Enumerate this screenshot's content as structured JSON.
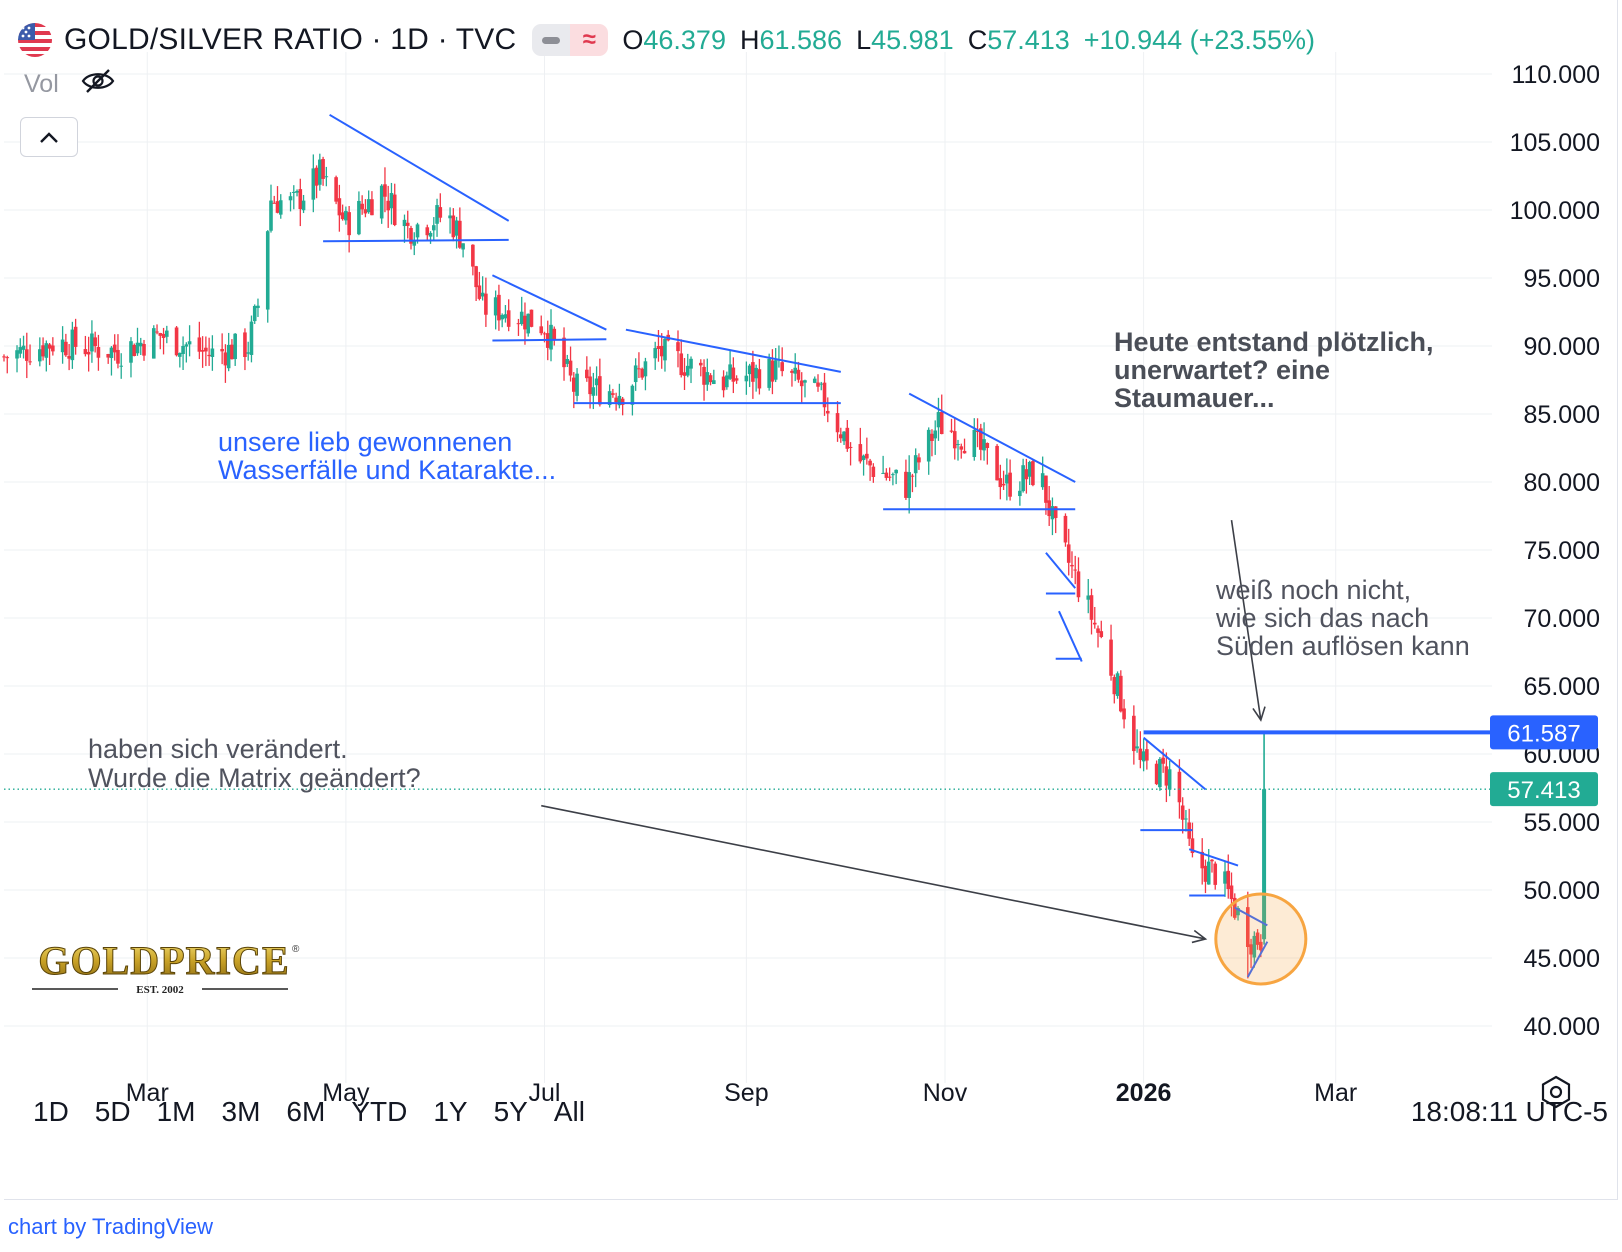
{
  "header": {
    "title": "GOLD/SILVER RATIO · 1D · TVC",
    "ohlc": [
      {
        "key": "O",
        "value": "46.379"
      },
      {
        "key": "H",
        "value": "61.586"
      },
      {
        "key": "L",
        "value": "45.981"
      },
      {
        "key": "C",
        "value": "57.413"
      }
    ],
    "change": "+10.944 (+23.55%)",
    "pill_icon": "≈"
  },
  "volume": {
    "label": "Vol",
    "icon": "eye-off-icon"
  },
  "collapse": {
    "icon": "chevron-up-icon",
    "glyph": "⌃"
  },
  "range_buttons": [
    "1D",
    "5D",
    "1M",
    "3M",
    "6M",
    "YTD",
    "1Y",
    "5Y",
    "All"
  ],
  "clock": "18:08:11 UTC-5",
  "credit": "chart by TradingView",
  "logo": {
    "text": "GOLDPRICE",
    "sub": "EST. 2002",
    "registered": "®"
  },
  "annotations": {
    "waterfalls": "unsere lieb gewonnenen\nWasserfälle und Katarakte...",
    "dam": "Heute entstand plötzlich,\nunerwartet?  eine\nStaumauer...",
    "south": "weiß noch nicht,\nwie sich das nach\nSüden auflösen kann",
    "matrix": "haben sich verändert.\nWurde die Matrix geändert?"
  },
  "colors": {
    "up": "#22ab94",
    "down": "#f23645",
    "drawing": "#2962ff",
    "circle": "#f7a541",
    "last_price": "#22ab94"
  },
  "chart_data": {
    "type": "candlestick",
    "title": "GOLD/SILVER RATIO · 1D · TVC",
    "ylim": [
      38,
      112
    ],
    "y_ticks": [
      40,
      45,
      50,
      55,
      60,
      65,
      70,
      75,
      80,
      85,
      90,
      95,
      100,
      105,
      110
    ],
    "y_tick_labels": [
      "40.000",
      "45.000",
      "50.000",
      "55.000",
      "60.000",
      "65.000",
      "70.000",
      "75.000",
      "80.000",
      "85.000",
      "90.000",
      "95.000",
      "100.000",
      "105.000",
      "110.000"
    ],
    "x_ticks": [
      {
        "label": "Mar",
        "date": "2025-03-01",
        "bold": false
      },
      {
        "label": "May",
        "date": "2025-05-01",
        "bold": false
      },
      {
        "label": "Jul",
        "date": "2025-07-01",
        "bold": false
      },
      {
        "label": "Sep",
        "date": "2025-09-01",
        "bold": false
      },
      {
        "label": "Nov",
        "date": "2025-11-01",
        "bold": false
      },
      {
        "label": "2026",
        "date": "2026-01-01",
        "bold": true
      },
      {
        "label": "Mar",
        "date": "2026-03-01",
        "bold": false
      }
    ],
    "x_range": [
      "2025-01-16",
      "2026-04-18"
    ],
    "grid": true,
    "price_labels": [
      {
        "value": 61.587,
        "label": "61.587",
        "color": "#2962ff"
      },
      {
        "value": 57.413,
        "label": "57.413",
        "color": "#22ab94"
      }
    ],
    "close_path": [
      [
        "2025-01-16",
        89.2
      ],
      [
        "2025-02-01",
        90.3
      ],
      [
        "2025-02-20",
        89.6
      ],
      [
        "2025-03-05",
        90.8
      ],
      [
        "2025-03-20",
        89.4
      ],
      [
        "2025-04-01",
        90.0
      ],
      [
        "2025-04-04",
        93.0
      ],
      [
        "2025-04-08",
        100.8
      ],
      [
        "2025-04-15",
        100.4
      ],
      [
        "2025-04-23",
        102.6
      ],
      [
        "2025-05-01",
        99.0
      ],
      [
        "2025-05-12",
        101.5
      ],
      [
        "2025-05-20",
        98.6
      ],
      [
        "2025-06-01",
        99.7
      ],
      [
        "2025-06-06",
        97.8
      ],
      [
        "2025-06-12",
        92.8
      ],
      [
        "2025-06-20",
        92.6
      ],
      [
        "2025-07-01",
        91.5
      ],
      [
        "2025-07-10",
        86.9
      ],
      [
        "2025-07-25",
        86.7
      ],
      [
        "2025-08-05",
        89.6
      ],
      [
        "2025-08-25",
        87.4
      ],
      [
        "2025-09-10",
        88.3
      ],
      [
        "2025-09-25",
        86.0
      ],
      [
        "2025-10-05",
        81.7
      ],
      [
        "2025-10-20",
        79.7
      ],
      [
        "2025-10-30",
        84.3
      ],
      [
        "2025-11-10",
        82.9
      ],
      [
        "2025-11-20",
        79.8
      ],
      [
        "2025-11-30",
        80.8
      ],
      [
        "2025-12-05",
        76.2
      ],
      [
        "2025-12-12",
        72.4
      ],
      [
        "2025-12-20",
        67.8
      ],
      [
        "2025-12-28",
        61.8
      ],
      [
        "2025-12-31",
        59.2
      ],
      [
        "2026-01-10",
        58.4
      ],
      [
        "2026-01-16",
        52.0
      ],
      [
        "2026-01-24",
        51.2
      ],
      [
        "2026-01-30",
        48.2
      ],
      [
        "2026-02-03",
        46.4
      ],
      [
        "2026-02-06",
        46.4
      ],
      [
        "2026-02-07",
        57.4
      ]
    ],
    "last_candle": {
      "date": "2026-02-07",
      "open": 46.379,
      "high": 61.586,
      "low": 45.981,
      "close": 57.413
    },
    "lower_low": {
      "date": "2026-02-02",
      "value": 43.5
    },
    "drawings": [
      {
        "type": "trendline",
        "from": [
          "2025-04-26",
          107.0
        ],
        "to": [
          "2025-06-20",
          99.2
        ]
      },
      {
        "type": "trendline",
        "from": [
          "2025-04-24",
          97.7
        ],
        "to": [
          "2025-06-20",
          97.8
        ]
      },
      {
        "type": "trendline",
        "from": [
          "2025-06-15",
          95.2
        ],
        "to": [
          "2025-07-20",
          91.2
        ]
      },
      {
        "type": "trendline",
        "from": [
          "2025-06-15",
          90.4
        ],
        "to": [
          "2025-07-20",
          90.5
        ]
      },
      {
        "type": "trendline",
        "from": [
          "2025-07-26",
          91.2
        ],
        "to": [
          "2025-09-30",
          88.1
        ]
      },
      {
        "type": "trendline",
        "from": [
          "2025-07-10",
          85.8
        ],
        "to": [
          "2025-09-30",
          85.8
        ]
      },
      {
        "type": "trendline",
        "from": [
          "2025-10-21",
          86.5
        ],
        "to": [
          "2025-12-11",
          80.0
        ]
      },
      {
        "type": "trendline",
        "from": [
          "2025-10-13",
          78.0
        ],
        "to": [
          "2025-12-11",
          78.0
        ]
      },
      {
        "type": "trendline",
        "from": [
          "2025-12-02",
          74.8
        ],
        "to": [
          "2025-12-11",
          72.2
        ]
      },
      {
        "type": "trendline",
        "from": [
          "2025-12-02",
          71.8
        ],
        "to": [
          "2025-12-11",
          71.8
        ]
      },
      {
        "type": "trendline",
        "from": [
          "2025-12-06",
          70.5
        ],
        "to": [
          "2025-12-13",
          66.8
        ]
      },
      {
        "type": "trendline",
        "from": [
          "2025-12-05",
          67.0
        ],
        "to": [
          "2025-12-13",
          67.0
        ]
      },
      {
        "type": "trendline",
        "from": [
          "2026-01-01",
          61.2
        ],
        "to": [
          "2026-01-20",
          57.4
        ]
      },
      {
        "type": "trendline",
        "from": [
          "2025-12-31",
          54.4
        ],
        "to": [
          "2026-01-16",
          54.4
        ]
      },
      {
        "type": "trendline",
        "from": [
          "2026-01-15",
          53.0
        ],
        "to": [
          "2026-01-30",
          51.8
        ]
      },
      {
        "type": "trendline",
        "from": [
          "2026-01-15",
          49.6
        ],
        "to": [
          "2026-01-26",
          49.6
        ]
      },
      {
        "type": "trendline",
        "from": [
          "2026-01-29",
          48.7
        ],
        "to": [
          "2026-02-08",
          47.4
        ]
      },
      {
        "type": "trendline",
        "from": [
          "2026-02-02",
          43.6
        ],
        "to": [
          "2026-02-08",
          46.2
        ]
      },
      {
        "type": "horizontal",
        "from": [
          "2026-01-01",
          61.587
        ],
        "to": [
          "2026-04-18",
          61.587
        ]
      }
    ],
    "arrows": [
      {
        "from": [
          "2026-01-28",
          77.2
        ],
        "to": [
          "2026-02-06",
          62.5
        ]
      },
      {
        "from": [
          "2025-06-30",
          56.2
        ],
        "to": [
          "2026-01-20",
          46.4
        ]
      }
    ],
    "circle": {
      "date": "2026-02-06",
      "value": 46.4
    }
  }
}
